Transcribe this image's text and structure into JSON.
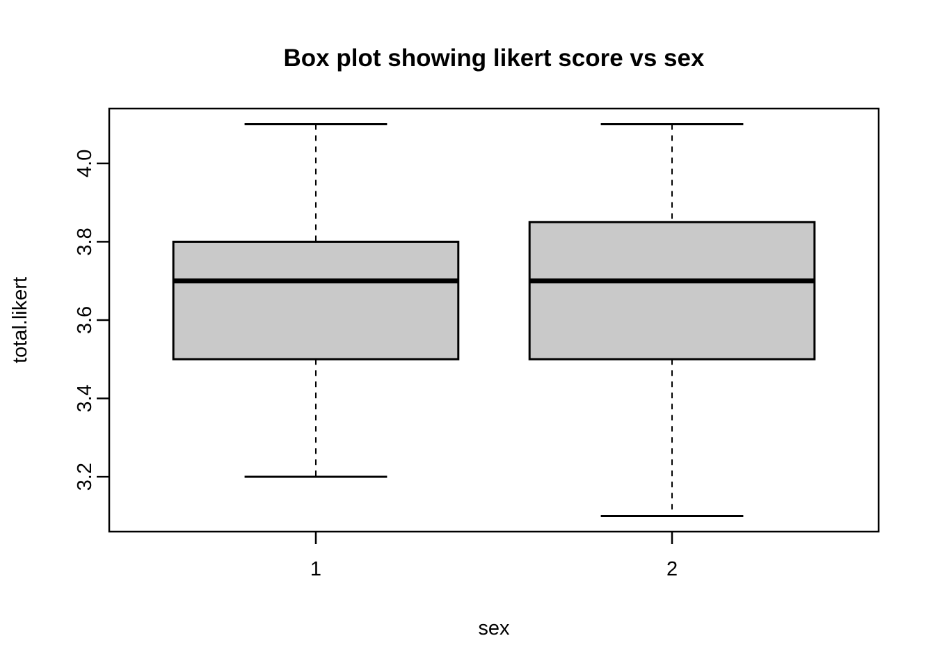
{
  "chart_data": {
    "type": "boxplot",
    "title": "Box plot showing likert score vs sex",
    "xlabel": "sex",
    "ylabel": "total.likert",
    "categories": [
      "1",
      "2"
    ],
    "series": [
      {
        "name": "1",
        "lower_whisker": 3.2,
        "q1": 3.5,
        "median": 3.7,
        "q3": 3.8,
        "upper_whisker": 4.1,
        "outliers": []
      },
      {
        "name": "2",
        "lower_whisker": 3.1,
        "q1": 3.5,
        "median": 3.7,
        "q3": 3.85,
        "upper_whisker": 4.1,
        "outliers": []
      }
    ],
    "x_positions": [
      1,
      2
    ],
    "xlim": [
      0.42,
      2.58
    ],
    "ylim": [
      3.06,
      4.14
    ],
    "y_ticks": [
      3.2,
      3.4,
      3.6,
      3.8,
      4.0
    ],
    "y_tick_labels": [
      "3.2",
      "3.4",
      "3.6",
      "3.8",
      "4.0"
    ],
    "grid": false,
    "legend": null,
    "colors": {
      "box_fill": "#c9c9c9",
      "stroke": "#000000",
      "background": "#ffffff"
    }
  }
}
